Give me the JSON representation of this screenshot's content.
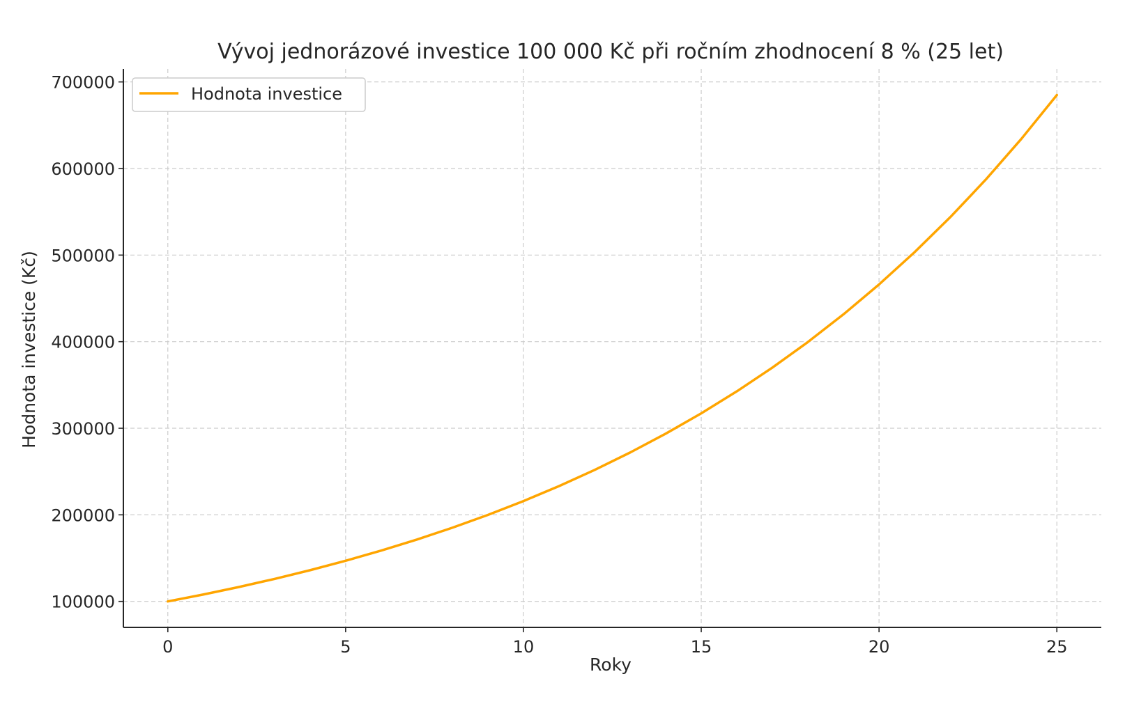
{
  "chart_data": {
    "type": "line",
    "title": "Vývoj jednorázové investice 100 000 Kč při ročním zhodnocení 8 % (25 let)",
    "xlabel": "Roky",
    "ylabel": "Hodnota investice (Kč)",
    "xlim": [
      -1.25,
      26.25
    ],
    "ylim": [
      70000,
      715000
    ],
    "xticks": [
      0,
      5,
      10,
      15,
      20,
      25
    ],
    "yticks": [
      100000,
      200000,
      300000,
      400000,
      500000,
      600000,
      700000
    ],
    "grid": true,
    "legend_position": "top-left",
    "series": [
      {
        "name": "Hodnota investice",
        "color": "#FFA500",
        "x": [
          0,
          1,
          2,
          3,
          4,
          5,
          6,
          7,
          8,
          9,
          10,
          11,
          12,
          13,
          14,
          15,
          16,
          17,
          18,
          19,
          20,
          21,
          22,
          23,
          24,
          25
        ],
        "y": [
          100000,
          108000,
          116640,
          125971,
          136049,
          146933,
          158687,
          171382,
          185093,
          199900,
          215892,
          233164,
          251817,
          271962,
          293719,
          317217,
          342594,
          370002,
          399602,
          431570,
          466096,
          503383,
          543654,
          587146,
          634118,
          684848
        ]
      }
    ]
  }
}
